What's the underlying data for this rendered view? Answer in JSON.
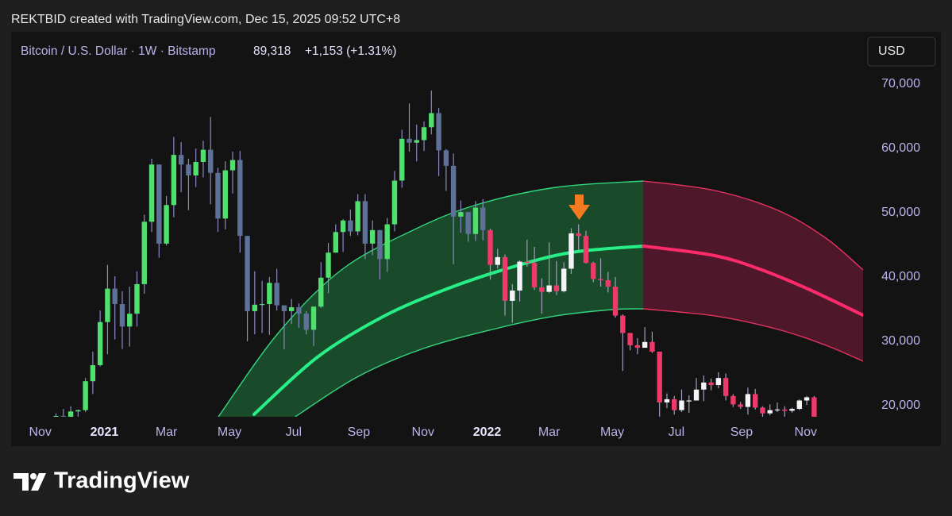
{
  "header": {
    "credit": "REKTBID created with TradingView.com, Dec 15, 2025 09:52 UTC+8",
    "symbol": "Bitcoin / U.S. Dollar · 1W · Bitstamp",
    "last": "89,318",
    "change": "+1,153 (+1.31%)",
    "currency": "USD"
  },
  "footer": {
    "brand": "TradingView"
  },
  "chart_data": {
    "type": "candlestick",
    "grid": false,
    "xlim": [
      -4.1,
      111.65
    ],
    "ylim": [
      18270,
      78150
    ],
    "yticks": [
      {
        "value": 20000,
        "label": "20,000"
      },
      {
        "value": 30000,
        "label": "30,000"
      },
      {
        "value": 40000,
        "label": "40,000"
      },
      {
        "value": 50000,
        "label": "50,000"
      },
      {
        "value": 60000,
        "label": "60,000"
      },
      {
        "value": 70000,
        "label": "70,000"
      }
    ],
    "xticks": [
      {
        "value": -0.14,
        "label": "Nov"
      },
      {
        "value": 8.57,
        "label": "2021"
      },
      {
        "value": 17.0,
        "label": "Mar"
      },
      {
        "value": 25.57,
        "label": "May"
      },
      {
        "value": 34.29,
        "label": "Jul"
      },
      {
        "value": 43.14,
        "label": "Sep"
      },
      {
        "value": 51.86,
        "label": "Nov"
      },
      {
        "value": 60.57,
        "label": "2022"
      },
      {
        "value": 69.0,
        "label": "Mar"
      },
      {
        "value": 77.57,
        "label": "May"
      },
      {
        "value": 86.29,
        "label": "Jul"
      },
      {
        "value": 95.14,
        "label": "Sep"
      },
      {
        "value": 103.86,
        "label": "Nov"
      }
    ],
    "series": [
      {
        "up_color": "#4fe06e",
        "down_color": "#5f7199",
        "wick_color": "#8e88c8",
        "x": [
          2,
          3,
          4,
          5,
          6,
          7,
          8,
          9,
          10,
          11,
          12,
          13,
          14,
          15,
          16,
          17,
          18,
          19,
          20,
          21,
          22,
          23,
          24,
          25,
          26,
          27,
          28,
          29,
          30,
          31,
          32,
          33,
          34,
          35,
          36,
          37,
          38,
          39,
          40,
          41,
          42,
          43,
          44,
          45,
          46,
          47,
          48,
          49,
          50,
          51,
          52,
          53,
          54,
          55,
          56,
          57,
          58,
          59,
          60
        ],
        "open": [
          15970,
          18400,
          18200,
          19100,
          19300,
          23800,
          26300,
          33000,
          38200,
          35800,
          32300,
          34300,
          38900,
          48600,
          57500,
          45200,
          51200,
          59000,
          57500,
          55800,
          57900,
          59800,
          56200,
          49100,
          56600,
          58200,
          46400,
          34700,
          35700,
          35800,
          39100,
          35600,
          34700,
          35300,
          34300,
          31800,
          35400,
          39900,
          43800,
          47000,
          48800,
          47100,
          51800,
          45200,
          47300,
          42800,
          48200,
          55000,
          61500,
          60900,
          61300,
          63300,
          65500,
          59700,
          57300,
          49400,
          50100,
          46700,
          50800
        ],
        "high": [
          18800,
          19500,
          19900,
          19400,
          24300,
          28400,
          34800,
          41900,
          40100,
          37800,
          38500,
          40900,
          49700,
          58400,
          57500,
          52600,
          61800,
          61000,
          58400,
          60000,
          61200,
          64900,
          57000,
          58000,
          59500,
          59600,
          46400,
          40900,
          39400,
          40000,
          41300,
          35600,
          36600,
          35900,
          34700,
          35400,
          42300,
          45300,
          48200,
          49000,
          50500,
          52900,
          52900,
          48800,
          47300,
          49200,
          56500,
          62900,
          67000,
          63700,
          64200,
          69000,
          66300,
          59900,
          59200,
          51900,
          50100,
          51800,
          52100
        ],
        "low": [
          15800,
          16200,
          18000,
          17600,
          19000,
          21800,
          26100,
          28000,
          30300,
          28800,
          29200,
          32300,
          37400,
          47000,
          43000,
          44900,
          49300,
          53200,
          50400,
          54000,
          55500,
          51300,
          47000,
          47400,
          53000,
          43800,
          30000,
          31100,
          31300,
          31000,
          34800,
          28800,
          32700,
          32100,
          31100,
          29300,
          35200,
          37500,
          43800,
          43900,
          46400,
          46500,
          42800,
          43400,
          39600,
          40800,
          47100,
          53900,
          59500,
          58000,
          59600,
          62200,
          55700,
          53400,
          42000,
          46900,
          45500,
          45600,
          45700
        ],
        "close": [
          18400,
          18200,
          19100,
          19300,
          23800,
          26300,
          33000,
          38200,
          35800,
          32300,
          34300,
          38900,
          48600,
          57500,
          45200,
          51200,
          59000,
          57500,
          55800,
          57900,
          59800,
          56200,
          49100,
          56600,
          58200,
          46400,
          34700,
          35700,
          35800,
          39100,
          35600,
          34700,
          35300,
          34300,
          31800,
          35400,
          39900,
          43800,
          47000,
          48800,
          47100,
          51800,
          45200,
          47300,
          42800,
          48200,
          55000,
          61500,
          60900,
          61300,
          63300,
          65500,
          59700,
          57300,
          49400,
          50100,
          46700,
          50800,
          47300
        ]
      },
      {
        "up_color": "#f4f4f8",
        "down_color": "#f0396b",
        "wick_color": "#a29ec0",
        "x": [
          61,
          62,
          63,
          64,
          65,
          66,
          67,
          68,
          69,
          70,
          71,
          72,
          73,
          74,
          75,
          76,
          77,
          78,
          79,
          80,
          81,
          82,
          83,
          84,
          85,
          86,
          87,
          88,
          89,
          90,
          91,
          92,
          93,
          94,
          95,
          96,
          97,
          98,
          99,
          100,
          101,
          102,
          103,
          104,
          105
        ],
        "open": [
          47300,
          41900,
          43100,
          36300,
          37900,
          42400,
          42200,
          38400,
          37700,
          38700,
          37800,
          41300,
          46800,
          46400,
          42200,
          39700,
          39500,
          38500,
          34000,
          31300,
          29400,
          29000,
          29900,
          28400,
          20500,
          21000,
          19300,
          20800,
          20800,
          22500,
          23600,
          23200,
          24300,
          21500,
          20200,
          19800,
          21800,
          19700,
          18800,
          19300,
          19400,
          19200,
          19500,
          20800,
          21300
        ],
        "high": [
          47500,
          44400,
          43500,
          38900,
          42600,
          45800,
          44700,
          39800,
          45400,
          42500,
          42300,
          47600,
          48200,
          47200,
          42400,
          42900,
          40800,
          40000,
          34200,
          31300,
          30500,
          32200,
          31500,
          28400,
          21900,
          21500,
          22500,
          21600,
          24300,
          24700,
          24200,
          25200,
          25000,
          21800,
          20600,
          22800,
          22600,
          19900,
          20200,
          20500,
          19900,
          19700,
          21000,
          21500,
          21500
        ],
        "low": [
          39600,
          41300,
          34000,
          32900,
          36200,
          41600,
          38000,
          34300,
          37500,
          37200,
          37600,
          40500,
          44200,
          42100,
          39200,
          38500,
          37600,
          33700,
          25400,
          28600,
          28000,
          29000,
          28200,
          17600,
          19600,
          18600,
          19000,
          18900,
          20800,
          20700,
          22400,
          22700,
          20800,
          19800,
          19500,
          18600,
          19400,
          18100,
          18500,
          19000,
          18200,
          18900,
          19300,
          20100,
          15600
        ],
        "close": [
          41900,
          43100,
          36300,
          37900,
          42400,
          42200,
          38400,
          37700,
          38700,
          37800,
          41300,
          46800,
          46400,
          42200,
          39700,
          39500,
          38500,
          34000,
          31300,
          29400,
          29000,
          29900,
          28400,
          20500,
          21000,
          19300,
          20800,
          20800,
          22500,
          23600,
          23200,
          24300,
          21500,
          20200,
          19800,
          21800,
          19700,
          18800,
          19300,
          19400,
          19200,
          19500,
          20800,
          21300,
          16300
        ]
      }
    ],
    "bands": [
      {
        "color": "#27ee86",
        "edge_color": "#33d67e",
        "fill": "rgba(34,150,74,0.42)",
        "upper": {
          "x": [
            24.06,
            32.15,
            40.78,
            50.49,
            59.12,
            69.9,
            81.8
          ],
          "values": [
            18272,
            31235,
            41111,
            47284,
            51235,
            53951,
            54938
          ]
        },
        "middle": {
          "x": [
            28.9,
            37.5,
            46.2,
            54.8,
            63.4,
            72.0,
            81.8
          ],
          "values": [
            18642,
            27531,
            33704,
            38025,
            41358,
            43827,
            44815
          ]
        },
        "lower": {
          "x": [
            34.5,
            42.9,
            51.6,
            61.3,
            69.9,
            77.5,
            81.8
          ],
          "values": [
            18272,
            24444,
            28765,
            31852,
            33951,
            34938,
            35062
          ]
        }
      },
      {
        "color": "#ff2b6a",
        "edge_color": "#e33461",
        "fill": "rgba(118,26,58,0.6)",
        "upper": {
          "x": [
            81.8,
            91.5,
            100.1,
            106.6,
            111.65
          ],
          "values": [
            54938,
            53457,
            50370,
            46049,
            41111
          ]
        },
        "middle": {
          "x": [
            81.8,
            91.5,
            97.9,
            104.4,
            111.65
          ],
          "values": [
            44815,
            43333,
            41111,
            38025,
            34074
          ]
        },
        "lower": {
          "x": [
            81.8,
            91.5,
            100.1,
            106.6,
            111.65
          ],
          "values": [
            35062,
            33951,
            31852,
            29383,
            26914
          ]
        }
      }
    ]
  }
}
